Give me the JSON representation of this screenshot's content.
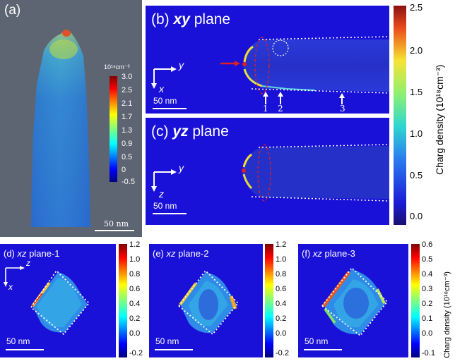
{
  "panel_a": {
    "label": "(a)",
    "colorbar_unit": "10¹⁸cm⁻³",
    "colorbar_ticks": [
      "3.0",
      "2.5",
      "2.1",
      "1.7",
      "1.3",
      "0.9",
      "0.5",
      "0",
      "-0.5"
    ],
    "scale_bar": "50 nm"
  },
  "panel_b": {
    "label_prefix": "(b)",
    "label_plane": "xy",
    "label_suffix": "plane",
    "axis_h": "y",
    "axis_v": "x",
    "scale_bar": "50 nm",
    "markers": [
      "1",
      "2",
      "3"
    ]
  },
  "panel_c": {
    "label_prefix": "(c)",
    "label_plane": "yz",
    "label_suffix": "plane",
    "axis_h": "y",
    "axis_v": "z",
    "scale_bar": "50 nm"
  },
  "colorbar_bc": {
    "title": "Charg density (10¹⁸cm⁻³)",
    "ticks": [
      "2.5",
      "2.0",
      "1.5",
      "1.0",
      "0.5",
      "0.0"
    ]
  },
  "panel_d": {
    "label_prefix": "(d)",
    "label_plane": "xz",
    "label_suffix": "plane-1",
    "axis_h": "z",
    "axis_v": "x",
    "scale_bar": "50 nm",
    "colorbar_ticks": [
      "1.2",
      "1.0",
      "0.8",
      "0.6",
      "0.4",
      "0.2",
      "0.0",
      "-0.2"
    ]
  },
  "panel_e": {
    "label_prefix": "(e)",
    "label_plane": "xz",
    "label_suffix": "plane-2",
    "scale_bar": "50 nm",
    "colorbar_ticks": [
      "1.2",
      "1.0",
      "0.8",
      "0.6",
      "0.4",
      "0.2",
      "0.0",
      "-0.2"
    ]
  },
  "panel_f": {
    "label_prefix": "(f)",
    "label_plane": "xz",
    "label_suffix": "plane-3",
    "scale_bar": "50 nm",
    "colorbar_ticks": [
      "0.6",
      "0.5",
      "0.4",
      "0.3",
      "0.2",
      "0.1",
      "0.0",
      "-0.1"
    ],
    "colorbar_title": "Charg density (10¹⁸cm⁻³)"
  },
  "colors": {
    "map_background": "#1a11d8",
    "panel_a_background": "#5d6572",
    "jet_start": "#00007f",
    "jet_end": "#7f0000"
  }
}
